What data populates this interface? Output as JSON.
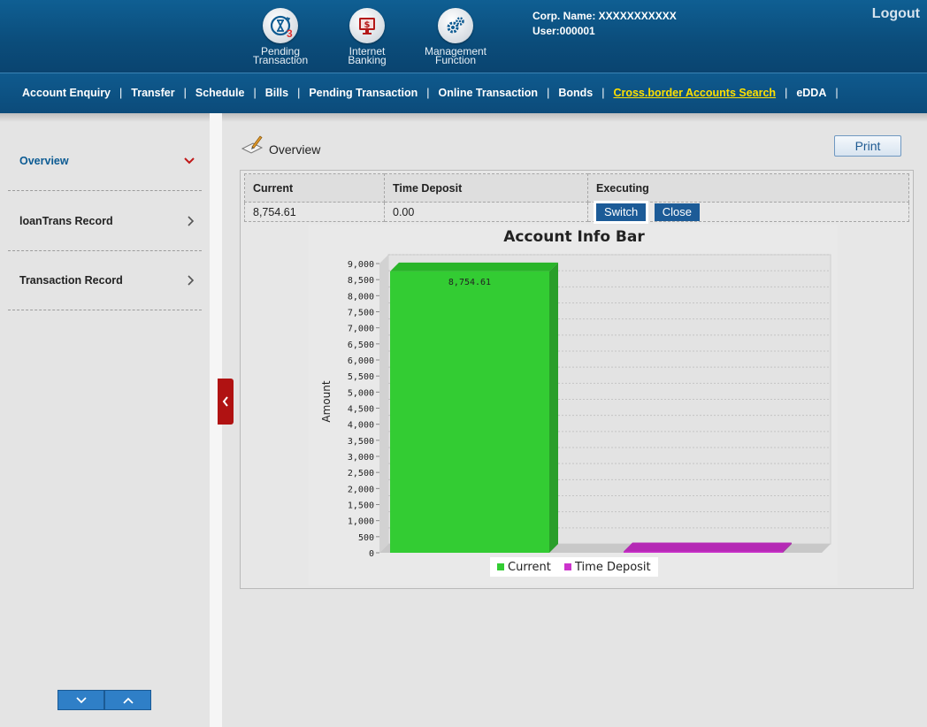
{
  "header": {
    "icons": [
      {
        "label_line1": "Pending",
        "label_line2": "Transaction",
        "badge": "3",
        "icon": "hourglass-refresh-icon"
      },
      {
        "label_line1": "Internet",
        "label_line2": "Banking",
        "icon": "monitor-dollar-icon"
      },
      {
        "label_line1": "Management",
        "label_line2": "Function",
        "icon": "gears-icon"
      }
    ],
    "corp_name": "Corp. Name: XXXXXXXXXXX",
    "user": "User:000001",
    "logout": "Logout"
  },
  "menu": [
    {
      "label": "Account Enquiry"
    },
    {
      "label": "Transfer"
    },
    {
      "label": "Schedule"
    },
    {
      "label": "Bills"
    },
    {
      "label": "Pending Transaction"
    },
    {
      "label": "Online Transaction"
    },
    {
      "label": "Bonds"
    },
    {
      "label": "Cross.border Accounts Search",
      "highlighted": true
    },
    {
      "label": "eDDA"
    }
  ],
  "sidebar": {
    "items": [
      {
        "label": "Overview",
        "icon": "chevron-down-icon"
      },
      {
        "label": "loanTrans Record",
        "icon": "chevron-right-icon"
      },
      {
        "label": "Transaction Record",
        "icon": "chevron-right-icon"
      }
    ]
  },
  "content": {
    "title": "Overview",
    "print_label": "Print",
    "table": {
      "headers": [
        "Current",
        "Time Deposit",
        "Executing"
      ],
      "values": [
        "8,754.61",
        "0.00"
      ],
      "switch_label": "Switch",
      "close_label": "Close"
    }
  },
  "colors": {
    "header_blue": "#0b4c7a",
    "accent_yellow": "#ffe000",
    "current_green": "#33cc33",
    "deposit_magenta": "#cc33cc"
  },
  "chart_data": {
    "type": "bar",
    "title": "Account Info Bar",
    "ylabel": "Amount",
    "xlabel": "",
    "categories": [
      "Current",
      "Time Deposit"
    ],
    "values": [
      8754.61,
      0
    ],
    "data_labels": [
      "8,754.61",
      ""
    ],
    "ylim": [
      0,
      9000
    ],
    "ytick_step": 500,
    "legend": [
      "Current",
      "Time Deposit"
    ],
    "legend_placement": "bottom",
    "grid": true,
    "style": "3d"
  }
}
